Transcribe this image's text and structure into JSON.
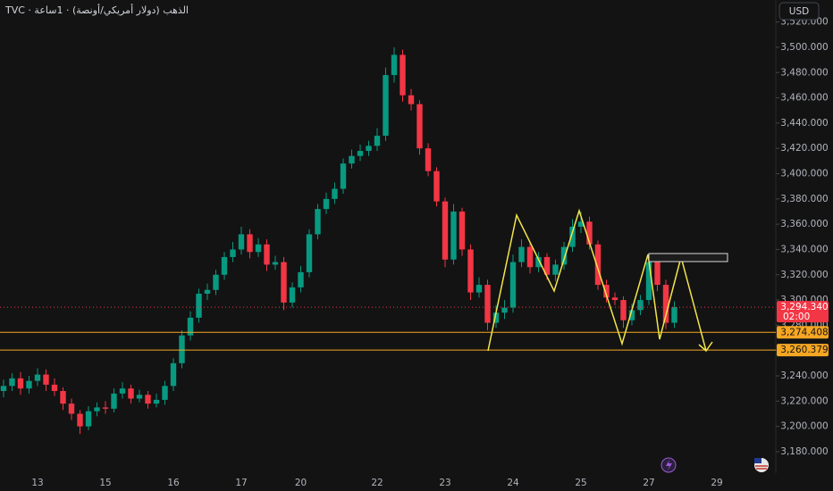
{
  "chart_data": {
    "type": "candlestick",
    "title": "TVC · الذهب (دولار أمريكي/أونصة) · 1ساعة",
    "currency": "USD",
    "categories": [
      null,
      null,
      null,
      null,
      "13",
      null,
      null,
      null,
      null,
      null,
      null,
      null,
      "15",
      null,
      null,
      null,
      null,
      null,
      null,
      null,
      "16",
      null,
      null,
      null,
      null,
      null,
      null,
      null,
      "17",
      null,
      null,
      null,
      null,
      null,
      null,
      "20",
      null,
      null,
      null,
      null,
      null,
      null,
      null,
      null,
      "22",
      null,
      null,
      null,
      null,
      null,
      null,
      null,
      "23",
      null,
      null,
      null,
      null,
      null,
      null,
      null,
      "24",
      null,
      null,
      null,
      null,
      null,
      null,
      null,
      "25",
      null,
      null,
      null,
      null,
      null,
      null,
      null,
      "27",
      null,
      null,
      null,
      null,
      null,
      null,
      null,
      "29"
    ],
    "open": [
      3228,
      3232,
      3238,
      3230,
      3236,
      3241,
      3233,
      3228,
      3218,
      3210,
      3200,
      3212,
      3215,
      3214,
      3226,
      3230,
      3222,
      3225,
      3218,
      3221,
      3232,
      3250,
      3272,
      3286,
      3305,
      3308,
      3320,
      3334,
      3340,
      3352,
      3338,
      3344,
      3328,
      3330,
      3298,
      3310,
      3322,
      3352,
      3372,
      3380,
      3388,
      3408,
      3414,
      3418,
      3422,
      3430,
      3478,
      3494,
      3462,
      3455,
      3420,
      3402,
      3378,
      3332,
      3370,
      3340,
      3306,
      3312,
      3282,
      3290,
      3294,
      3330,
      3342,
      3326,
      3334,
      3320,
      3328,
      3342,
      3358,
      3362,
      3344,
      3312,
      3302,
      3300,
      3284,
      3292,
      3300,
      3330,
      3312,
      3282,
      null,
      null,
      null,
      null,
      null
    ],
    "high": [
      3237,
      3242,
      3243,
      3240,
      3246,
      3245,
      3238,
      3231,
      3222,
      3213,
      3216,
      3219,
      3220,
      3230,
      3235,
      3233,
      3229,
      3228,
      3226,
      3236,
      3254,
      3276,
      3291,
      3309,
      3313,
      3324,
      3338,
      3346,
      3358,
      3356,
      3349,
      3348,
      3335,
      3334,
      3314,
      3327,
      3356,
      3376,
      3385,
      3393,
      3412,
      3419,
      3423,
      3426,
      3436,
      3484,
      3500,
      3498,
      3467,
      3458,
      3424,
      3405,
      3381,
      3376,
      3373,
      3344,
      3318,
      3316,
      3296,
      3300,
      3336,
      3348,
      3345,
      3338,
      3337,
      3332,
      3346,
      3364,
      3370,
      3366,
      3347,
      3316,
      3306,
      3303,
      3297,
      3304,
      3336,
      3334,
      3316,
      3299,
      null,
      null,
      null,
      null,
      null
    ],
    "low": [
      3223,
      3228,
      3225,
      3226,
      3232,
      3228,
      3224,
      3213,
      3205,
      3194,
      3197,
      3208,
      3210,
      3211,
      3222,
      3218,
      3219,
      3214,
      3215,
      3217,
      3228,
      3246,
      3268,
      3282,
      3300,
      3304,
      3316,
      3330,
      3336,
      3333,
      3334,
      3323,
      3324,
      3292,
      3294,
      3306,
      3318,
      3348,
      3368,
      3376,
      3384,
      3404,
      3410,
      3414,
      3418,
      3426,
      3472,
      3457,
      3450,
      3415,
      3398,
      3374,
      3326,
      3328,
      3335,
      3300,
      3302,
      3276,
      3278,
      3285,
      3290,
      3326,
      3321,
      3322,
      3316,
      3315,
      3324,
      3338,
      3353,
      3340,
      3308,
      3298,
      3296,
      3278,
      3280,
      3288,
      3296,
      3307,
      3277,
      3278,
      null,
      null,
      null,
      null,
      null
    ],
    "close": [
      3232,
      3238,
      3230,
      3236,
      3241,
      3233,
      3228,
      3218,
      3210,
      3200,
      3212,
      3215,
      3214,
      3226,
      3230,
      3222,
      3225,
      3218,
      3221,
      3232,
      3250,
      3272,
      3286,
      3305,
      3308,
      3320,
      3334,
      3340,
      3352,
      3338,
      3344,
      3328,
      3330,
      3298,
      3310,
      3322,
      3352,
      3372,
      3380,
      3388,
      3408,
      3414,
      3418,
      3422,
      3430,
      3478,
      3494,
      3462,
      3455,
      3420,
      3402,
      3378,
      3332,
      3370,
      3340,
      3306,
      3312,
      3282,
      3290,
      3294,
      3330,
      3342,
      3326,
      3334,
      3320,
      3328,
      3342,
      3358,
      3362,
      3344,
      3312,
      3302,
      3300,
      3284,
      3292,
      3300,
      3330,
      3312,
      3282,
      3294.34,
      null,
      null,
      null,
      null,
      null
    ],
    "up_color": "#089981",
    "down_color": "#f23645",
    "ylim": [
      3163,
      3537.4
    ],
    "yticks": [
      {
        "value": 3180,
        "label": "3,180.000"
      },
      {
        "value": 3200,
        "label": "3,200.000"
      },
      {
        "value": 3220,
        "label": "3,220.000"
      },
      {
        "value": 3240,
        "label": "3,240.000"
      },
      {
        "value": 3260,
        "label": "3,260.000"
      },
      {
        "value": 3280,
        "label": "3,280.000"
      },
      {
        "value": 3300,
        "label": "3,300.000"
      },
      {
        "value": 3320,
        "label": "3,320.000"
      },
      {
        "value": 3340,
        "label": "3,340.000"
      },
      {
        "value": 3360,
        "label": "3,360.000"
      },
      {
        "value": 3380,
        "label": "3,380.000"
      },
      {
        "value": 3400,
        "label": "3,400.000"
      },
      {
        "value": 3420,
        "label": "3,420.000"
      },
      {
        "value": 3440,
        "label": "3,440.000"
      },
      {
        "value": 3460,
        "label": "3,460.000"
      },
      {
        "value": 3480,
        "label": "3,480.000"
      },
      {
        "value": 3500,
        "label": "3,500.000"
      },
      {
        "value": 3520,
        "label": "3,520.000"
      }
    ],
    "grid": false,
    "levels": [
      {
        "value": 3274.408,
        "label": "3,274.408",
        "color": "#f5a623"
      },
      {
        "value": 3260.379,
        "label": "3,260.379",
        "color": "#f5a623"
      }
    ],
    "last": {
      "value": 3294.34,
      "label": "3,294.340",
      "timer": "02:00",
      "color": "#f23645"
    }
  }
}
